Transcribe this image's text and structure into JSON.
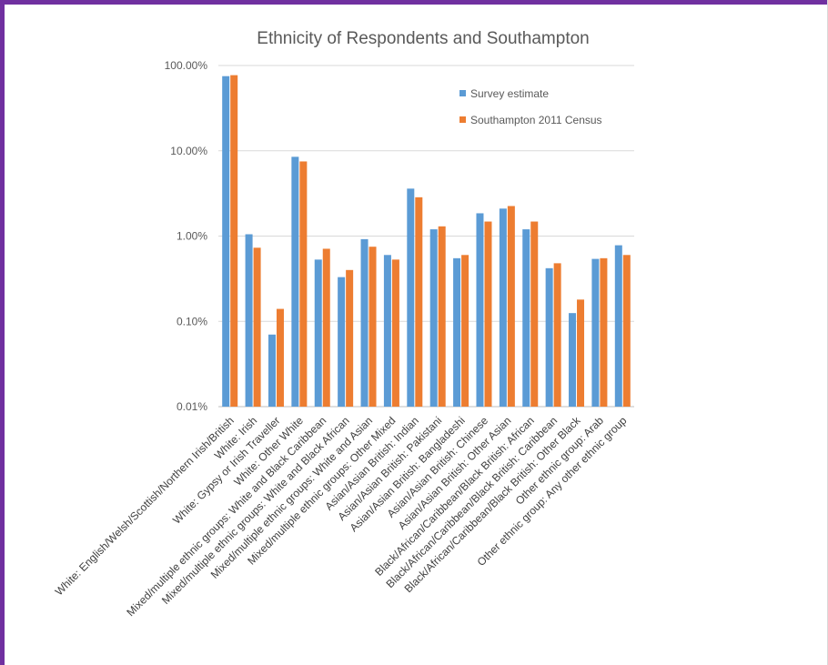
{
  "chart_data": {
    "type": "bar",
    "title": "Ethnicity of Respondents and Southampton",
    "xlabel": "",
    "ylabel": "",
    "scale": "log",
    "ylim": [
      0.01,
      100
    ],
    "yticks": [
      0.01,
      0.1,
      1,
      10,
      100
    ],
    "ytick_labels": [
      "0.01%",
      "0.10%",
      "1.00%",
      "10.00%",
      "100.00%"
    ],
    "grid": true,
    "legend_position": "top-right",
    "categories": [
      "White: English/Welsh/Scottish/Northern Irish/British",
      "White: Irish",
      "White: Gypsy or Irish Traveller",
      "White: Other White",
      "Mixed/multiple ethnic groups: White and Black Caribbean",
      "Mixed/multiple ethnic groups: White and Black African",
      "Mixed/multiple ethnic groups: White and Asian",
      "Mixed/multiple ethnic groups: Other Mixed",
      "Asian/Asian British: Indian",
      "Asian/Asian British: Pakistani",
      "Asian/Asian British: Bangladeshi",
      "Asian/Asian British: Chinese",
      "Asian/Asian British: Other Asian",
      "Black/African/Caribbean/Black British: African",
      "Black/African/Caribbean/Black British: Caribbean",
      "Black/African/Caribbean/Black British: Other Black",
      "Other ethnic group: Arab",
      "Other ethnic group: Any other ethnic group"
    ],
    "series": [
      {
        "name": "Survey estimate",
        "color": "#5b9bd5",
        "values": [
          75,
          1.05,
          0.07,
          8.5,
          0.53,
          0.33,
          0.92,
          0.6,
          3.6,
          1.2,
          0.55,
          1.85,
          2.1,
          1.2,
          0.42,
          0.125,
          0.54,
          0.78
        ]
      },
      {
        "name": "Southampton  2011 Census",
        "color": "#ed7d31",
        "values": [
          77,
          0.73,
          0.14,
          7.5,
          0.71,
          0.4,
          0.75,
          0.53,
          2.85,
          1.3,
          0.6,
          1.48,
          2.25,
          1.48,
          0.48,
          0.18,
          0.55,
          0.6
        ]
      }
    ]
  }
}
